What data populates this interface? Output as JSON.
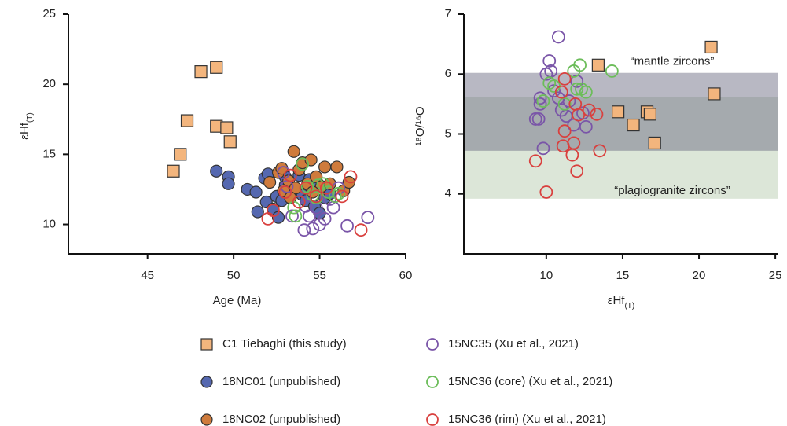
{
  "chart_data": [
    {
      "type": "scatter",
      "xlabel": "Age (Ma)",
      "ylabel": "εHf",
      "ylabel_sub": "(T)",
      "xlim": [
        40.4,
        60
      ],
      "ylim": [
        7.9,
        25
      ],
      "xticks": [
        45,
        50,
        55,
        60
      ],
      "yticks": [
        10,
        15,
        20,
        25
      ],
      "series": [
        {
          "name": "C1 Tiebaghi (this study)",
          "marker": "square",
          "filled": true,
          "color": "#f3b57d",
          "x": [
            46.5,
            46.9,
            47.3,
            48.1,
            49.0,
            49.0,
            49.6,
            49.8
          ],
          "values": [
            13.8,
            15.0,
            17.4,
            20.9,
            21.2,
            17.0,
            16.9,
            15.9
          ]
        },
        {
          "name": "18NC01 (unpublished)",
          "marker": "circle",
          "filled": true,
          "color": "#5568b0",
          "x": [
            49.0,
            49.7,
            49.7,
            50.8,
            51.3,
            51.4,
            51.8,
            52.0,
            51.9,
            52.3,
            52.5,
            52.8,
            52.6,
            53.0,
            53.0,
            53.4,
            53.8,
            54.0,
            54.2,
            54.4,
            54.7,
            55.0,
            55.3,
            55.6,
            54.9
          ],
          "values": [
            13.8,
            13.4,
            12.9,
            12.5,
            12.3,
            10.9,
            13.3,
            13.6,
            11.6,
            11.1,
            12.0,
            11.7,
            10.5,
            12.8,
            13.4,
            12.5,
            13.5,
            12.1,
            11.7,
            13.2,
            11.3,
            10.8,
            11.9,
            12.2,
            12.9
          ]
        },
        {
          "name": "18NC02 (unpublished)",
          "marker": "circle",
          "filled": true,
          "color": "#cf7b3c",
          "x": [
            52.1,
            52.6,
            52.8,
            53.2,
            53.5,
            53.6,
            53.8,
            54.0,
            54.3,
            54.5,
            54.8,
            55.1,
            55.3,
            55.6,
            56.0,
            56.4,
            56.7,
            52.9,
            53.3,
            54.6
          ],
          "values": [
            13.0,
            13.7,
            14.0,
            13.1,
            15.2,
            12.6,
            13.9,
            14.4,
            12.9,
            14.6,
            13.4,
            12.7,
            14.1,
            12.9,
            14.1,
            12.4,
            13.0,
            12.4,
            11.9,
            12.3
          ]
        },
        {
          "name": "15NC35 (Xu et al., 2021)",
          "marker": "circle",
          "filled": false,
          "color": "#7a55a8",
          "x": [
            52.9,
            53.1,
            53.4,
            54.1,
            54.4,
            54.6,
            54.8,
            55.0,
            55.3,
            55.6,
            56.1,
            56.6,
            57.8,
            55.8,
            54.2
          ],
          "values": [
            13.7,
            12.7,
            10.6,
            9.6,
            10.6,
            9.7,
            11.2,
            10.0,
            10.4,
            11.8,
            12.6,
            9.9,
            10.5,
            11.2,
            11.3
          ]
        },
        {
          "name": "15NC36 (core) (Xu et al., 2021)",
          "marker": "circle",
          "filled": false,
          "color": "#6cbd5a",
          "x": [
            53.5,
            53.6,
            54.0,
            54.3,
            54.6,
            54.8,
            55.2,
            55.5,
            55.9,
            56.1,
            54.9
          ],
          "values": [
            11.2,
            10.6,
            14.3,
            12.7,
            12.1,
            11.9,
            12.9,
            12.3,
            12.0,
            12.2,
            12.8
          ]
        },
        {
          "name": "15NC36 (rim) (Xu et al., 2021)",
          "marker": "circle",
          "filled": false,
          "color": "#d9403e",
          "x": [
            52.0,
            52.3,
            53.0,
            53.3,
            53.8,
            54.2,
            55.4,
            56.3,
            56.8,
            57.4,
            54.8
          ],
          "values": [
            10.4,
            11.0,
            12.3,
            13.5,
            11.6,
            12.6,
            12.6,
            12.0,
            13.4,
            9.6,
            12.0
          ]
        }
      ]
    },
    {
      "type": "scatter",
      "xlabel": "εHf",
      "xlabel_sub": "(T)",
      "ylabel": "¹⁸O/¹⁶O",
      "xlim": [
        4.6,
        25.2
      ],
      "ylim": [
        3,
        7
      ],
      "xticks": [
        10,
        15,
        20,
        25
      ],
      "yticks": [
        4,
        5,
        6,
        7
      ],
      "bands": [
        {
          "label": "“plagiogranite zircons”",
          "ylim": [
            3.92,
            5.62
          ],
          "color": "#dce6d8",
          "opacity": 1
        },
        {
          "label": "“mantle zircons”",
          "ylim": [
            4.72,
            6.02
          ],
          "color": "#64647d",
          "opacity": 0.46
        }
      ],
      "series": [
        {
          "marker": "square",
          "filled": true,
          "color": "#f3b57d",
          "x": [
            13.4,
            20.8,
            21.0,
            14.7,
            15.7,
            16.6,
            16.8,
            17.1
          ],
          "values": [
            6.15,
            6.45,
            5.67,
            5.37,
            5.15,
            5.37,
            5.33,
            4.85
          ]
        },
        {
          "marker": "circle",
          "filled": false,
          "color": "#7a55a8",
          "x": [
            10.8,
            10.2,
            10.3,
            10.0,
            9.6,
            9.5,
            9.3,
            9.8,
            10.5,
            10.8,
            11.0,
            11.3,
            11.8,
            12.0,
            12.4,
            12.6,
            11.5,
            9.6
          ],
          "values": [
            6.62,
            6.22,
            6.05,
            6.0,
            5.6,
            5.25,
            5.25,
            4.76,
            5.72,
            5.6,
            5.4,
            5.3,
            5.15,
            5.88,
            5.35,
            5.12,
            5.55,
            5.5
          ]
        },
        {
          "marker": "circle",
          "filled": false,
          "color": "#6cbd5a",
          "x": [
            10.2,
            10.5,
            9.8,
            11.8,
            12.2,
            14.3,
            12.0,
            12.6,
            11.2,
            12.3
          ],
          "values": [
            5.85,
            5.8,
            5.55,
            6.05,
            6.15,
            6.05,
            5.75,
            5.7,
            5.5,
            5.75
          ]
        },
        {
          "marker": "circle",
          "filled": false,
          "color": "#d9403e",
          "x": [
            9.3,
            10.0,
            11.1,
            11.7,
            12.0,
            11.8,
            13.5,
            11.2,
            12.1,
            12.8,
            13.3,
            11.0,
            11.2,
            11.9
          ],
          "values": [
            4.55,
            4.03,
            4.8,
            4.65,
            4.38,
            4.85,
            4.72,
            5.92,
            5.32,
            5.4,
            5.33,
            5.7,
            5.05,
            5.5
          ]
        }
      ]
    }
  ]
}
